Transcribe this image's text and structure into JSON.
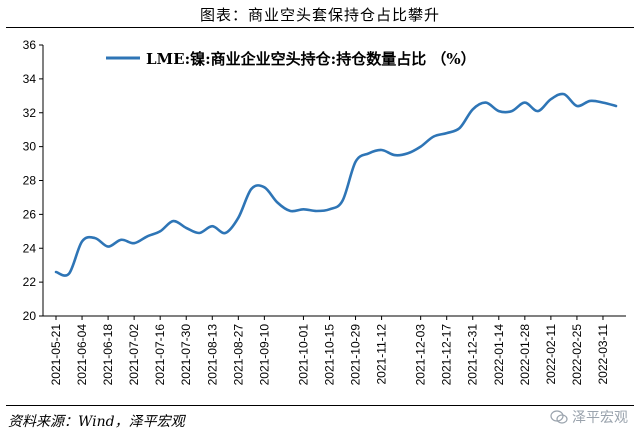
{
  "figure": {
    "title": "图表：商业空头套保持仓占比攀升",
    "source": "资料来源：Wind，泽平宏观",
    "watermark": "泽平宏观"
  },
  "colors": {
    "line": "#2E75B6",
    "axis": "#000000",
    "text": "#000000"
  },
  "chart_data": {
    "type": "line",
    "title": "",
    "xlabel": "",
    "ylabel": "",
    "ylim": [
      20,
      36
    ],
    "yticks": [
      20,
      22,
      24,
      26,
      28,
      30,
      32,
      34,
      36
    ],
    "grid": false,
    "legend_position": "top-left",
    "xticks": [
      "2021-05-21",
      "2021-06-04",
      "2021-06-18",
      "2021-07-02",
      "2021-07-16",
      "2021-07-30",
      "2021-08-13",
      "2021-08-27",
      "2021-09-10",
      "2021-10-01",
      "2021-10-15",
      "2021-10-29",
      "2021-11-12",
      "2021-12-03",
      "2021-12-17",
      "2021-12-31",
      "2022-01-14",
      "2022-01-28",
      "2022-02-11",
      "2022-02-25",
      "2022-03-11"
    ],
    "series": [
      {
        "name": "LME:镍:商业企业空头持仓:持仓数量占比 （%）",
        "x": [
          "2021-05-21",
          "2021-05-28",
          "2021-06-04",
          "2021-06-11",
          "2021-06-18",
          "2021-06-25",
          "2021-07-02",
          "2021-07-09",
          "2021-07-16",
          "2021-07-23",
          "2021-07-30",
          "2021-08-06",
          "2021-08-13",
          "2021-08-20",
          "2021-08-27",
          "2021-09-03",
          "2021-09-10",
          "2021-09-17",
          "2021-09-24",
          "2021-10-01",
          "2021-10-08",
          "2021-10-15",
          "2021-10-22",
          "2021-10-29",
          "2021-11-05",
          "2021-11-12",
          "2021-11-19",
          "2021-11-26",
          "2021-12-03",
          "2021-12-10",
          "2021-12-17",
          "2021-12-24",
          "2021-12-31",
          "2022-01-07",
          "2022-01-14",
          "2022-01-21",
          "2022-01-28",
          "2022-02-04",
          "2022-02-11",
          "2022-02-18",
          "2022-02-25",
          "2022-03-04",
          "2022-03-11",
          "2022-03-18"
        ],
        "values": [
          22.6,
          22.5,
          24.4,
          24.6,
          24.1,
          24.5,
          24.3,
          24.7,
          25.0,
          25.6,
          25.2,
          24.9,
          25.3,
          24.9,
          25.8,
          27.5,
          27.6,
          26.7,
          26.2,
          26.3,
          26.2,
          26.3,
          26.8,
          29.1,
          29.6,
          29.8,
          29.5,
          29.6,
          30.0,
          30.6,
          30.8,
          31.1,
          32.2,
          32.6,
          32.1,
          32.1,
          32.6,
          32.1,
          32.8,
          33.1,
          32.4,
          32.7,
          32.6,
          32.4
        ]
      }
    ]
  }
}
